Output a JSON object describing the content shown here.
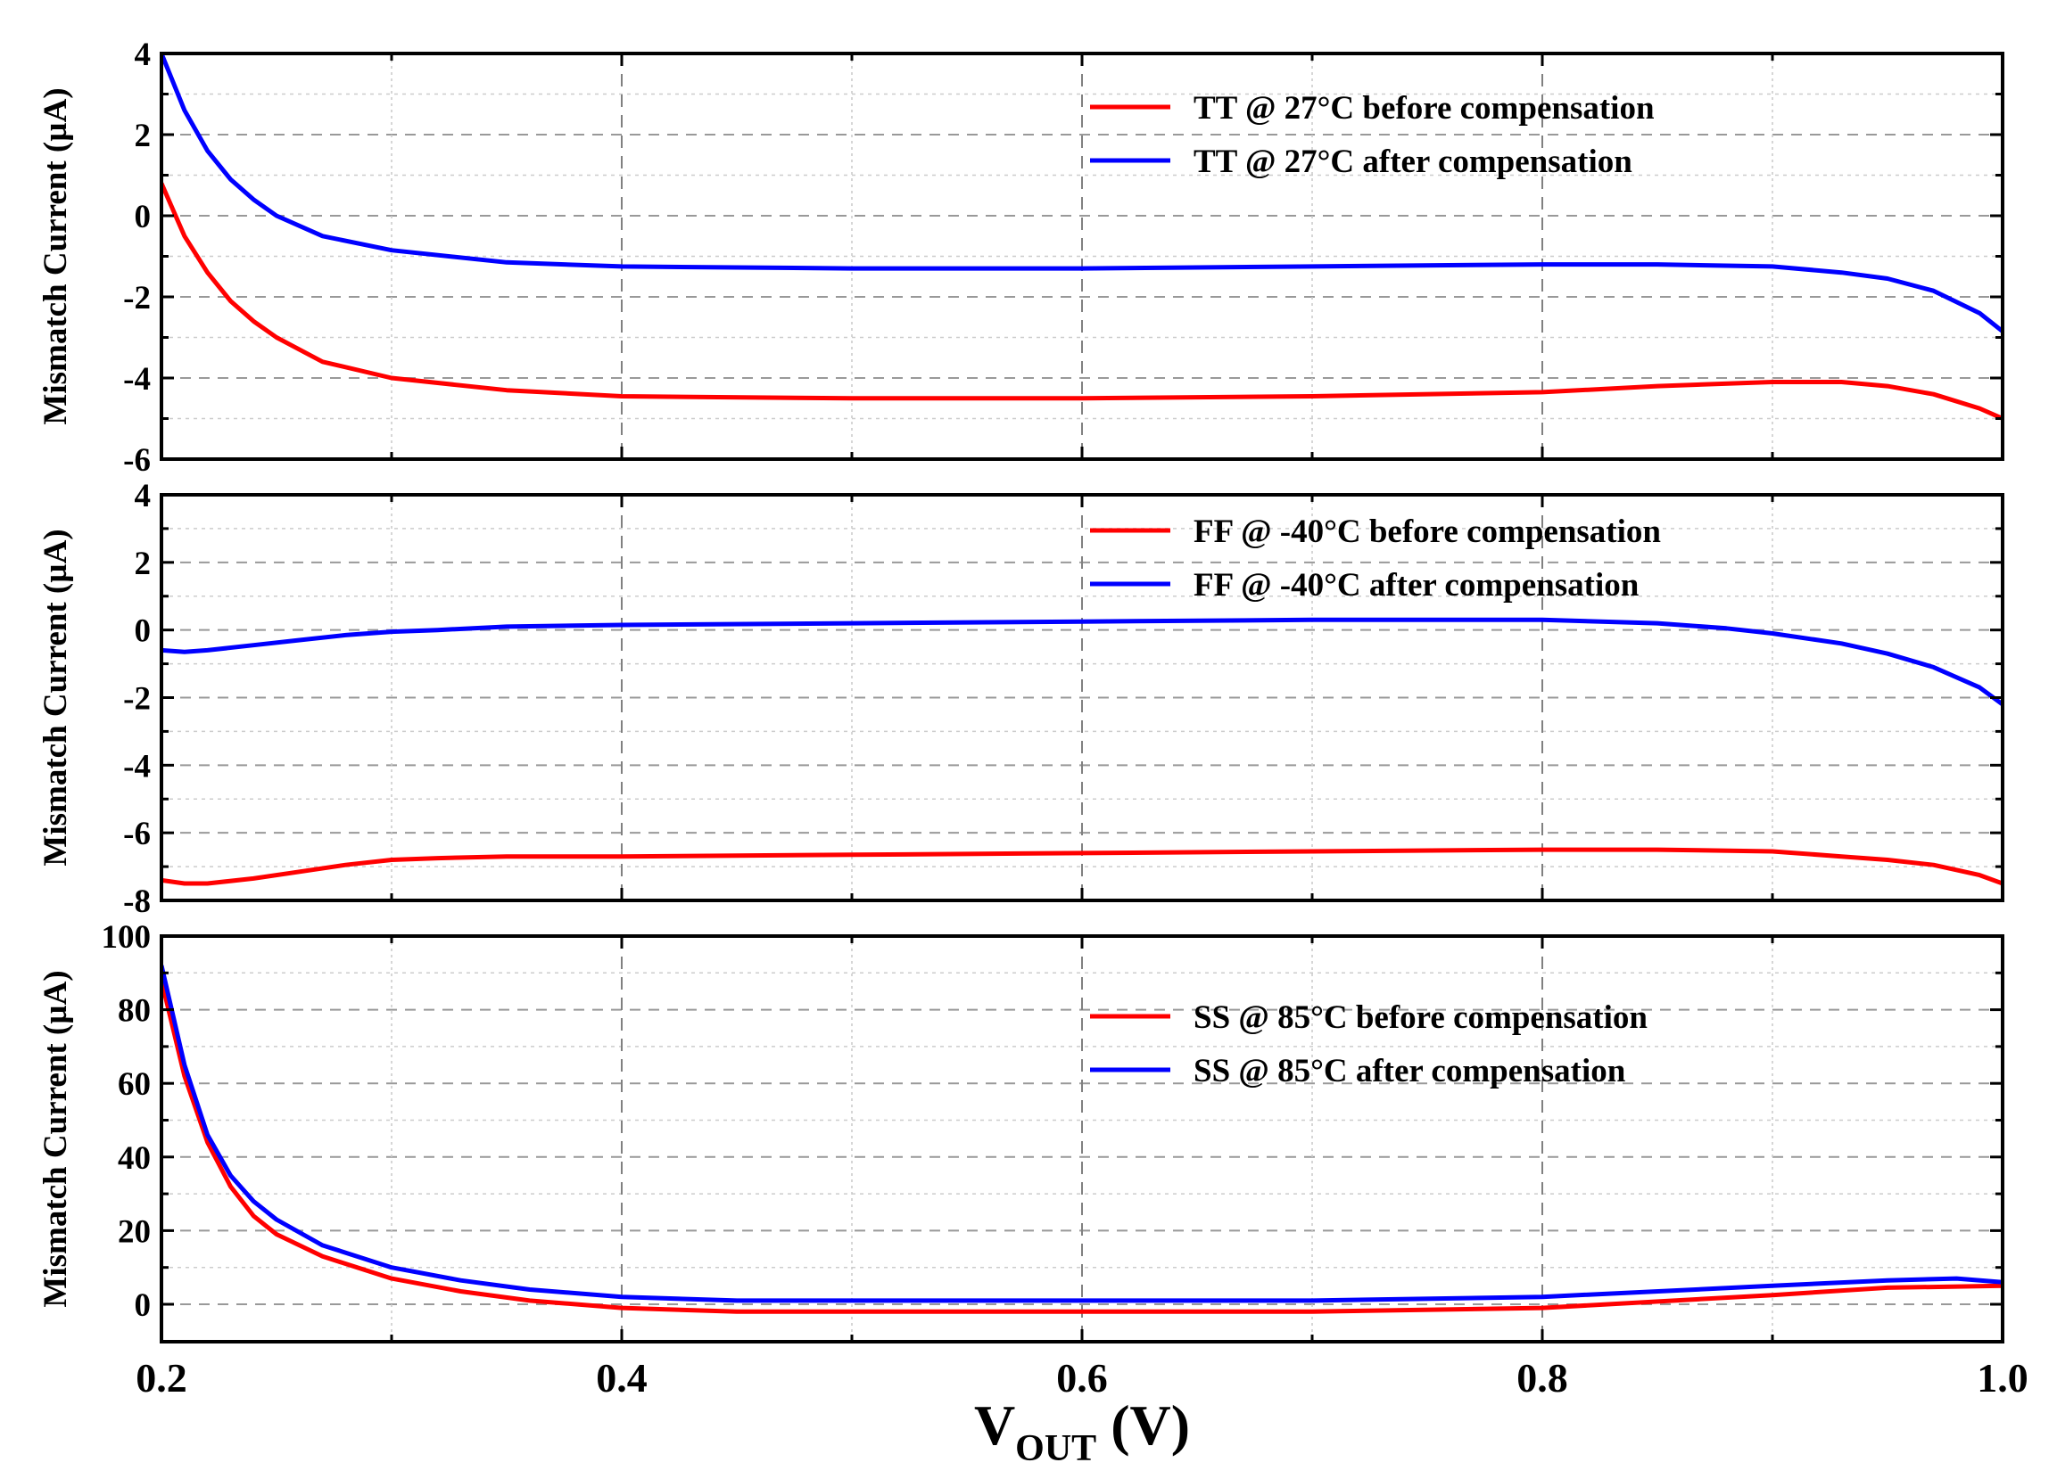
{
  "chart_data": {
    "type": "line",
    "shared_x": {
      "label": "V",
      "label_subscript": "OUT",
      "label_suffix": " (V)",
      "xlim": [
        0.2,
        1.0
      ],
      "ticks": [
        0.2,
        0.4,
        0.6,
        0.8,
        1.0
      ],
      "tick_labels": [
        "0.2",
        "0.4",
        "0.6",
        "0.8",
        "1.0"
      ],
      "minor_ticks": [
        0.3,
        0.5,
        0.7,
        0.9
      ]
    },
    "panels": [
      {
        "id": "tt",
        "ylabel": "Mismatch Current (µA)",
        "ylim": [
          -6,
          4
        ],
        "yticks": [
          4,
          2,
          0,
          -2,
          -4,
          -6
        ],
        "ytick_labels": [
          "4",
          "2",
          "0",
          "-2",
          "-4",
          "-6"
        ],
        "legend_position": "top-right",
        "series": [
          {
            "name": "TT @ 27°C before compensation",
            "color": "#ff0000",
            "x": [
              0.2,
              0.21,
              0.22,
              0.23,
              0.24,
              0.25,
              0.27,
              0.3,
              0.35,
              0.4,
              0.5,
              0.6,
              0.7,
              0.8,
              0.85,
              0.9,
              0.93,
              0.95,
              0.97,
              0.99,
              1.0
            ],
            "y": [
              0.8,
              -0.5,
              -1.4,
              -2.1,
              -2.6,
              -3.0,
              -3.6,
              -4.0,
              -4.3,
              -4.45,
              -4.5,
              -4.5,
              -4.45,
              -4.35,
              -4.2,
              -4.1,
              -4.1,
              -4.2,
              -4.4,
              -4.75,
              -5.0
            ]
          },
          {
            "name": "TT @ 27°C after compensation",
            "color": "#0000ff",
            "x": [
              0.2,
              0.21,
              0.22,
              0.23,
              0.24,
              0.25,
              0.27,
              0.3,
              0.35,
              0.4,
              0.5,
              0.6,
              0.7,
              0.8,
              0.85,
              0.9,
              0.93,
              0.95,
              0.97,
              0.99,
              1.0
            ],
            "y": [
              4.0,
              2.6,
              1.6,
              0.9,
              0.4,
              0.0,
              -0.5,
              -0.85,
              -1.15,
              -1.25,
              -1.3,
              -1.3,
              -1.25,
              -1.2,
              -1.2,
              -1.25,
              -1.4,
              -1.55,
              -1.85,
              -2.4,
              -2.85
            ]
          }
        ]
      },
      {
        "id": "ff",
        "ylabel": "Mismatch Current (µA)",
        "ylim": [
          -8,
          4
        ],
        "yticks": [
          4,
          2,
          0,
          -2,
          -4,
          -6,
          -8
        ],
        "ytick_labels": [
          "4",
          "2",
          "0",
          "-2",
          "-4",
          "-6",
          "-8"
        ],
        "legend_position": "top-right",
        "series": [
          {
            "name": "FF @ -40°C before compensation",
            "color": "#ff0000",
            "x": [
              0.2,
              0.21,
              0.22,
              0.24,
              0.26,
              0.28,
              0.3,
              0.32,
              0.35,
              0.4,
              0.5,
              0.6,
              0.7,
              0.8,
              0.85,
              0.9,
              0.93,
              0.95,
              0.97,
              0.99,
              1.0
            ],
            "y": [
              -7.4,
              -7.5,
              -7.5,
              -7.35,
              -7.15,
              -6.95,
              -6.8,
              -6.75,
              -6.7,
              -6.7,
              -6.65,
              -6.6,
              -6.55,
              -6.5,
              -6.5,
              -6.55,
              -6.7,
              -6.8,
              -6.95,
              -7.25,
              -7.5
            ]
          },
          {
            "name": "FF @ -40°C after compensation",
            "color": "#0000ff",
            "x": [
              0.2,
              0.21,
              0.22,
              0.24,
              0.26,
              0.28,
              0.3,
              0.32,
              0.35,
              0.4,
              0.5,
              0.6,
              0.7,
              0.8,
              0.85,
              0.88,
              0.9,
              0.93,
              0.95,
              0.97,
              0.99,
              1.0
            ],
            "y": [
              -0.6,
              -0.65,
              -0.6,
              -0.45,
              -0.3,
              -0.15,
              -0.05,
              0.0,
              0.1,
              0.15,
              0.2,
              0.25,
              0.3,
              0.3,
              0.2,
              0.05,
              -0.1,
              -0.4,
              -0.7,
              -1.1,
              -1.7,
              -2.2
            ]
          }
        ]
      },
      {
        "id": "ss",
        "ylabel": "Mismatch Current (µA)",
        "ylim": [
          -10,
          100
        ],
        "yticks": [
          100,
          80,
          60,
          40,
          20,
          0
        ],
        "ytick_labels": [
          "100",
          "80",
          "60",
          "40",
          "20",
          "0"
        ],
        "legend_position": "middle-right",
        "series": [
          {
            "name": "SS @ 85°C before compensation",
            "color": "#ff0000",
            "x": [
              0.2,
              0.21,
              0.22,
              0.23,
              0.24,
              0.25,
              0.27,
              0.3,
              0.33,
              0.36,
              0.4,
              0.45,
              0.5,
              0.6,
              0.7,
              0.8,
              0.9,
              0.95,
              1.0
            ],
            "y": [
              88,
              62,
              44,
              32,
              24,
              19,
              13,
              7,
              3.5,
              1,
              -1,
              -2,
              -2,
              -2,
              -2,
              -1,
              2.5,
              4.5,
              5
            ]
          },
          {
            "name": "SS @ 85°C after compensation",
            "color": "#0000ff",
            "x": [
              0.2,
              0.21,
              0.22,
              0.23,
              0.24,
              0.25,
              0.27,
              0.3,
              0.33,
              0.36,
              0.4,
              0.45,
              0.5,
              0.6,
              0.7,
              0.8,
              0.9,
              0.95,
              0.98,
              1.0
            ],
            "y": [
              92,
              65,
              46,
              35,
              28,
              23,
              16,
              10,
              6.5,
              4,
              2,
              1,
              1,
              1,
              1,
              2,
              5,
              6.5,
              7,
              6
            ]
          }
        ]
      }
    ]
  }
}
